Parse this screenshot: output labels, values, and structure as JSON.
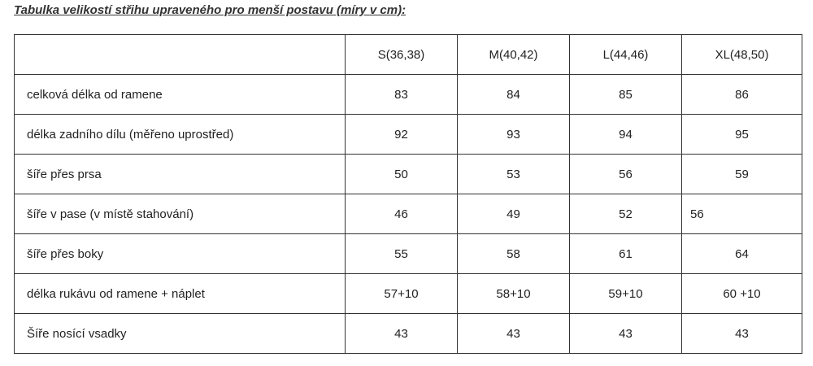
{
  "title": "Tabulka velikostí střihu upraveného pro menší postavu (míry v cm):",
  "table": {
    "headers": [
      "",
      "S(36,38)",
      "M(40,42)",
      "L(44,46)",
      "XL(48,50)"
    ],
    "rows": [
      {
        "label": "celková délka od ramene",
        "values": [
          "83",
          "84",
          "85",
          "86"
        ]
      },
      {
        "label": "délka zadního dílu (měřeno uprostřed)",
        "values": [
          "92",
          "93",
          "94",
          "95"
        ]
      },
      {
        "label": "šíře přes prsa",
        "values": [
          "50",
          "53",
          "56",
          "59"
        ]
      },
      {
        "label": "šíře v pase (v místě stahování)",
        "values": [
          "46",
          "49",
          "52",
          "56"
        ]
      },
      {
        "label": "šíře přes boky",
        "values": [
          "55",
          "58",
          "61",
          "64"
        ]
      },
      {
        "label": "délka rukávu od ramene + náplet",
        "values": [
          "57+10",
          "58+10",
          "59+10",
          "60 +10"
        ]
      },
      {
        "label": "Šíře nosící vsadky",
        "values": [
          "43",
          "43",
          "43",
          "43"
        ]
      }
    ]
  }
}
